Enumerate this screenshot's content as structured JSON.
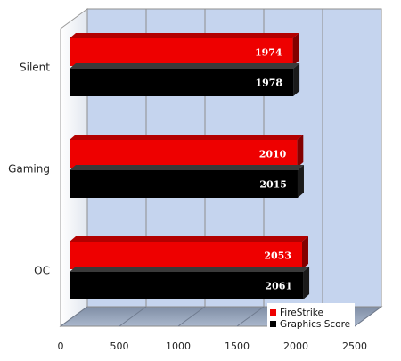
{
  "chart_data": {
    "type": "bar",
    "orientation": "horizontal",
    "three_d": true,
    "categories": [
      "Silent",
      "Gaming",
      "OC"
    ],
    "series": [
      {
        "name": "FireStrike",
        "values": [
          1974,
          2010,
          2053
        ],
        "color": "#ee0000"
      },
      {
        "name": "Graphics Score",
        "values": [
          1978,
          2015,
          2061
        ],
        "color": "#000000"
      }
    ],
    "xlim": [
      0,
      2500
    ],
    "x_ticks": [
      0,
      500,
      1000,
      1500,
      2000,
      2500
    ],
    "grid": true,
    "legend_position": "bottom-right",
    "data_labels": true,
    "background_color": "#c5d4ee",
    "title": "",
    "xlabel": "",
    "ylabel": ""
  }
}
